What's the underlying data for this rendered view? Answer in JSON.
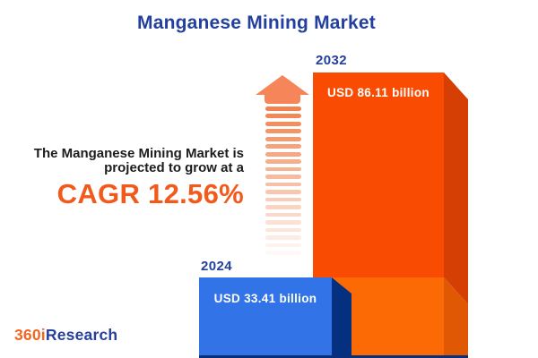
{
  "header": {
    "title": "Manganese Mining Market",
    "title_color": "#23409E"
  },
  "growth_note": {
    "line1": "The Manganese Mining Market is",
    "line2": "projected to grow at a",
    "cagr_label": "CAGR 12.56%",
    "cagr_color": "#F25A1C"
  },
  "chart_data": {
    "type": "bar",
    "title": "Manganese Mining Market",
    "categories": [
      "2024",
      "2032"
    ],
    "values": [
      33.41,
      86.11
    ],
    "unit": "USD billion",
    "value_labels": [
      "USD 33.41 billion",
      "USD 86.11 billion"
    ],
    "cagr_percent": 12.56,
    "legend": "none",
    "grid": false,
    "axes": "none",
    "style": "3d-prism-bars",
    "bar_colors": [
      "#3273E8",
      "#F94B02"
    ]
  },
  "bars_3d": {
    "y2032": {
      "face_top": "#F94B02",
      "face_bottom": "#FC6A06",
      "side_top": "#D63F04",
      "side_bottom": "#E05803"
    },
    "y2024": {
      "face": "#3273E8",
      "side": "#04307F"
    },
    "baseline": "#0A2F7A"
  },
  "arrow": {
    "name": "growth-arrow",
    "head_color": "#F68659",
    "stripe_color": "#F2824E",
    "stripe_count": 20
  },
  "logo": {
    "part1": "360i",
    "part2": "Research",
    "part1_color": "#F26522",
    "part2_color": "#27419B"
  }
}
